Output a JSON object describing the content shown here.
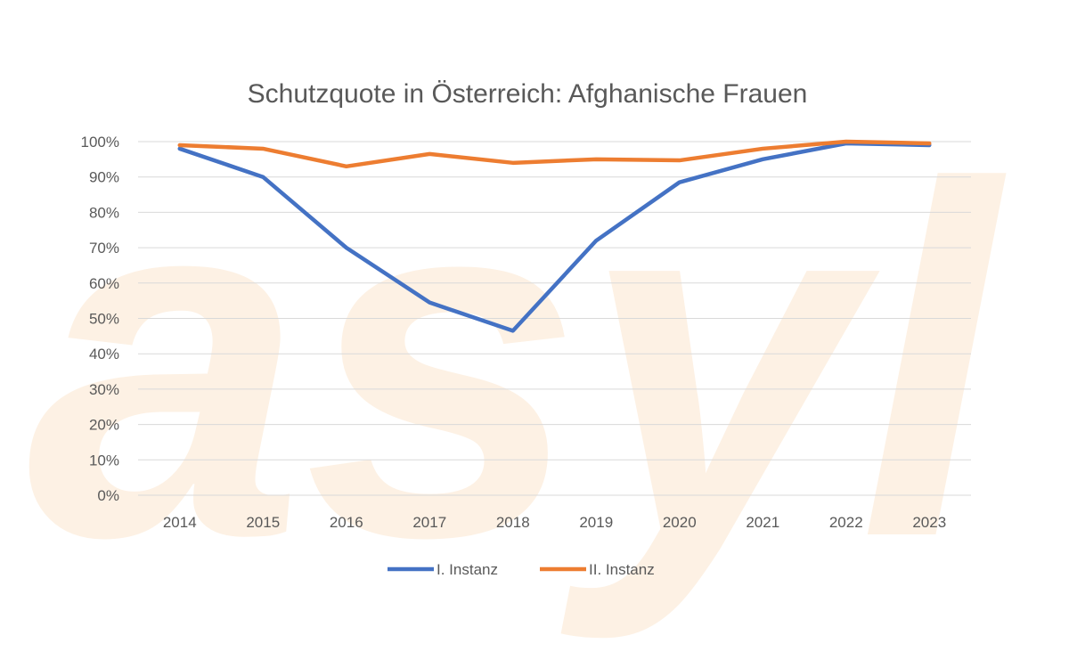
{
  "watermark": {
    "text": "asyl",
    "color": "#fdf1e4"
  },
  "chart_data": {
    "type": "line",
    "title": "Schutzquote in Österreich: Afghanische Frauen",
    "xlabel": "",
    "ylabel": "",
    "categories": [
      "2014",
      "2015",
      "2016",
      "2017",
      "2018",
      "2019",
      "2020",
      "2021",
      "2022",
      "2023"
    ],
    "ylim": [
      0,
      100
    ],
    "yticks": [
      0,
      10,
      20,
      30,
      40,
      50,
      60,
      70,
      80,
      90,
      100
    ],
    "ytick_labels": [
      "0%",
      "10%",
      "20%",
      "30%",
      "40%",
      "50%",
      "60%",
      "70%",
      "80%",
      "90%",
      "100%"
    ],
    "grid": true,
    "legend_position": "bottom",
    "series": [
      {
        "name": "I. Instanz",
        "color": "#4472c4",
        "values": [
          98,
          90,
          70,
          54.5,
          46.5,
          72,
          88.5,
          95,
          99.5,
          99
        ]
      },
      {
        "name": "II. Instanz",
        "color": "#ed7d31",
        "values": [
          99,
          98,
          93,
          96.5,
          94,
          95,
          94.7,
          98,
          100,
          99.5
        ]
      }
    ]
  }
}
